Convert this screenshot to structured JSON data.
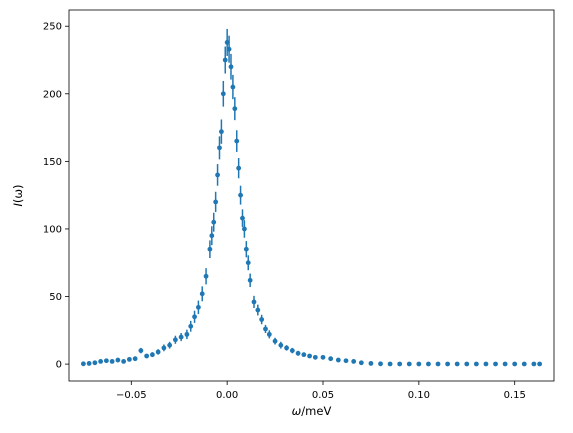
{
  "chart_data": {
    "type": "scatter",
    "title": "",
    "xlabel_symbol": "ω",
    "xlabel_unit": "/meV",
    "ylabel_symbol": "I",
    "ylabel_arg": "(ω)",
    "xlim": [
      -0.0825,
      0.1705
    ],
    "ylim": [
      -12.5,
      262
    ],
    "x_ticks": [
      -0.05,
      0.0,
      0.05,
      0.1,
      0.15
    ],
    "x_tick_labels": [
      "−0.05",
      "0.00",
      "0.05",
      "0.10",
      "0.15"
    ],
    "y_ticks": [
      0,
      50,
      100,
      150,
      200,
      250
    ],
    "y_tick_labels": [
      "0",
      "50",
      "100",
      "150",
      "200",
      "250"
    ],
    "grid": false,
    "marker_color": "#1f77b4",
    "series": [
      {
        "x": [
          -0.075,
          -0.072,
          -0.069,
          -0.066,
          -0.063,
          -0.06,
          -0.057,
          -0.054,
          -0.051,
          -0.048,
          -0.045,
          -0.042,
          -0.039,
          -0.036,
          -0.033,
          -0.03,
          -0.027,
          -0.024,
          -0.021,
          -0.019,
          -0.017,
          -0.015,
          -0.013,
          -0.011,
          -0.009,
          -0.008,
          -0.007,
          -0.006,
          -0.005,
          -0.004,
          -0.003,
          -0.002,
          -0.001,
          0.0,
          0.001,
          0.002,
          0.003,
          0.004,
          0.005,
          0.006,
          0.007,
          0.008,
          0.009,
          0.01,
          0.011,
          0.012,
          0.014,
          0.016,
          0.018,
          0.02,
          0.022,
          0.025,
          0.028,
          0.031,
          0.034,
          0.037,
          0.04,
          0.043,
          0.046,
          0.05,
          0.054,
          0.058,
          0.062,
          0.066,
          0.07,
          0.075,
          0.08,
          0.085,
          0.09,
          0.095,
          0.1,
          0.105,
          0.11,
          0.115,
          0.12,
          0.125,
          0.13,
          0.135,
          0.14,
          0.145,
          0.15,
          0.155,
          0.16,
          0.163
        ],
        "y": [
          0.2,
          0.5,
          1.0,
          2.0,
          2.5,
          2.0,
          3.0,
          2.0,
          3.5,
          4.0,
          10.0,
          6.0,
          7.0,
          9.0,
          12.0,
          14.0,
          18.0,
          20.0,
          22.0,
          28.0,
          35.0,
          42.0,
          52.0,
          65.0,
          85.0,
          95.0,
          105.0,
          120.0,
          140.0,
          160.0,
          172.0,
          200.0,
          225.0,
          238.0,
          233.0,
          220.0,
          205.0,
          189.0,
          165.0,
          145.0,
          125.0,
          108.0,
          100.0,
          85.0,
          75.0,
          62.0,
          46.0,
          40.0,
          33.0,
          26.0,
          22.0,
          17.0,
          14.0,
          12.0,
          10.0,
          8.0,
          7.0,
          6.0,
          5.0,
          5.0,
          4.0,
          3.0,
          2.5,
          2.0,
          1.0,
          0.5,
          0.2,
          0.1,
          0.1,
          0.1,
          0.1,
          0.1,
          0.1,
          0.1,
          0.1,
          0.1,
          0.1,
          0.1,
          0.1,
          0.1,
          0.1,
          0.1,
          0.1,
          0.1
        ],
        "yerr": [
          0.5,
          0.5,
          0.8,
          1.0,
          1.0,
          1.0,
          1.2,
          1.0,
          1.2,
          1.5,
          2.0,
          1.5,
          1.8,
          2.0,
          2.5,
          2.5,
          3.0,
          3.0,
          3.5,
          4.0,
          4.5,
          5.0,
          5.5,
          6.0,
          6.5,
          7.0,
          7.0,
          7.5,
          8.0,
          8.5,
          9.0,
          9.5,
          10.0,
          10.0,
          10.0,
          9.5,
          9.0,
          8.5,
          8.0,
          7.5,
          7.0,
          6.5,
          6.5,
          6.0,
          5.5,
          5.0,
          4.5,
          4.0,
          3.5,
          3.0,
          3.0,
          2.5,
          2.5,
          2.0,
          2.0,
          1.8,
          1.5,
          1.5,
          1.2,
          1.2,
          1.0,
          1.0,
          0.8,
          0.8,
          0.5,
          0.5,
          0.3,
          0.3,
          0.3,
          0.3,
          0.3,
          0.3,
          0.3,
          0.3,
          0.3,
          0.3,
          0.3,
          0.3,
          0.3,
          0.3,
          0.3,
          0.3,
          0.3,
          0.3
        ]
      }
    ]
  }
}
